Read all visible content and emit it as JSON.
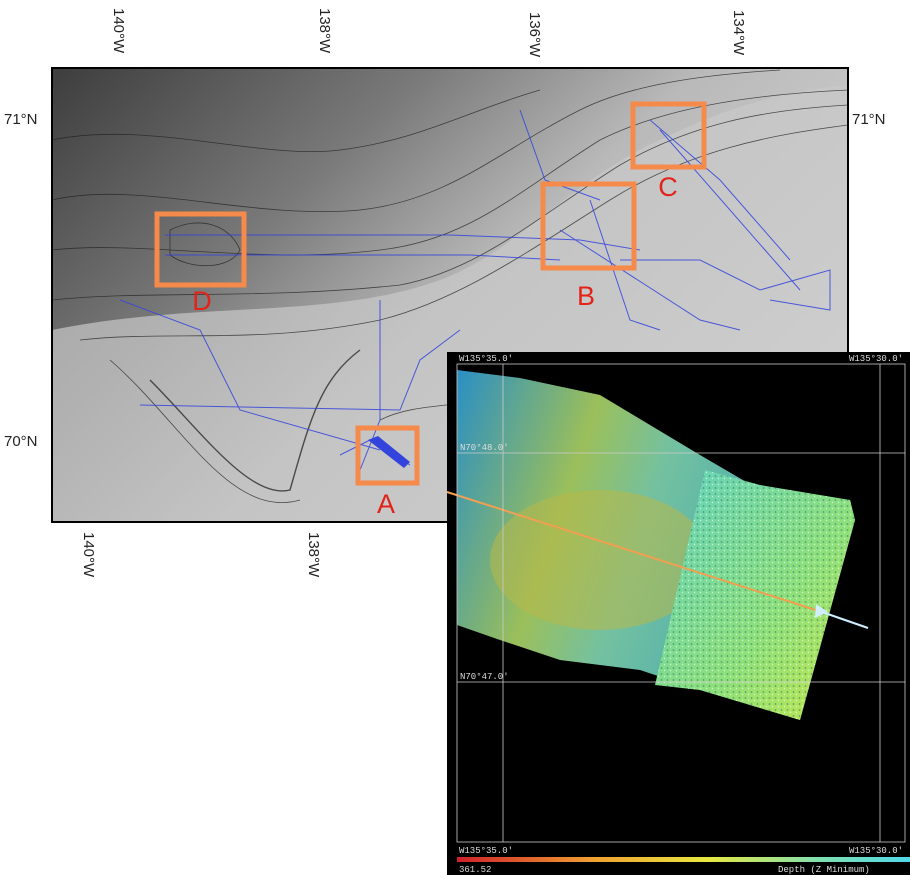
{
  "map": {
    "top_lon_labels": [
      "140°W",
      "138°W",
      "136°W",
      "134°W"
    ],
    "bottom_lon_labels": [
      "140°W",
      "138°W"
    ],
    "left_lat_labels": [
      "71°N",
      "70°N"
    ],
    "right_lat_labels": [
      "71°N"
    ],
    "boxes": [
      {
        "label": "D"
      },
      {
        "label": "B"
      },
      {
        "label": "C"
      },
      {
        "label": "A"
      }
    ]
  },
  "inset": {
    "top_labels": [
      "W135°35.0'",
      "W135°30.0'"
    ],
    "lat_labels": [
      "N70°48.0'",
      "N70°47.0'"
    ],
    "bottom_labels": [
      "W135°35.0'",
      "W135°30.0'"
    ],
    "colorbar": {
      "min_label": "361.52",
      "title": "Depth (Z Minimum)"
    }
  }
}
